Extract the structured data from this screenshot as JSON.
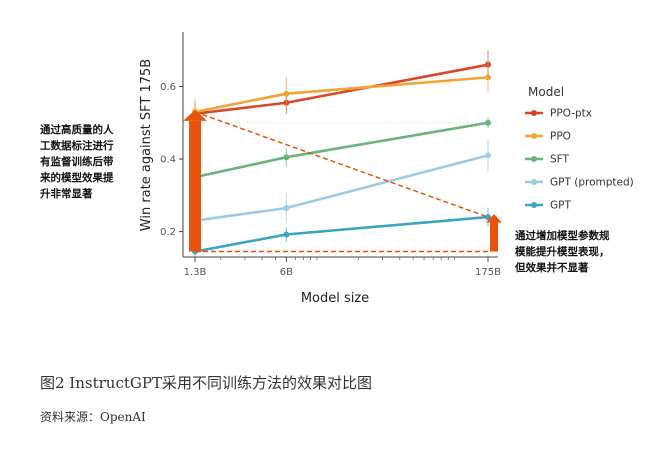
{
  "chart_data": {
    "type": "line",
    "x_tick_labels": [
      "1.3B",
      "6B",
      "175B"
    ],
    "x_values": [
      1.3,
      6,
      175
    ],
    "x_scale": "log",
    "y_ticks": [
      0.2,
      0.4,
      0.6
    ],
    "y_tick_labels": [
      "0.2",
      "0.4",
      "0.6"
    ],
    "ylim": [
      0.13,
      0.75
    ],
    "xlabel": "Model size",
    "ylabel": "Win rate against SFT 175B",
    "legend_title": "Model",
    "legend_position": "right",
    "series": [
      {
        "name": "PPO-ptx",
        "color": "#d9472b",
        "values": [
          0.525,
          0.555,
          0.66
        ],
        "err": [
          0.03,
          0.03,
          0.04
        ]
      },
      {
        "name": "PPO",
        "color": "#f0a535",
        "values": [
          0.53,
          0.58,
          0.625
        ],
        "err": [
          0.035,
          0.045,
          0.04
        ]
      },
      {
        "name": "SFT",
        "color": "#6ab47c",
        "values": [
          0.35,
          0.405,
          0.5
        ],
        "err": [
          0.02,
          0.025,
          0.015
        ]
      },
      {
        "name": "GPT (prompted)",
        "color": "#9ccbe8",
        "values": [
          0.23,
          0.265,
          0.41
        ],
        "err": [
          0.03,
          0.04,
          0.045
        ]
      },
      {
        "name": "GPT",
        "color": "#3aa5c2",
        "values": [
          0.145,
          0.192,
          0.24
        ],
        "err": [
          0.015,
          0.02,
          0.025
        ]
      }
    ],
    "reference_line": 0.5
  },
  "annotations": {
    "left_text": "通过高质量的人\n工数据标注进行\n有监督训练后带\n来的模型效果提\n升非常显著",
    "right_text": "通过增加模型参数规\n模能提升模型表现，\n但效果并不显著",
    "arrow_color": "#e8540e"
  },
  "caption": {
    "title": "图2  InstructGPT采用不同训练方法的效果对比图",
    "source": "资料来源：OpenAI"
  }
}
